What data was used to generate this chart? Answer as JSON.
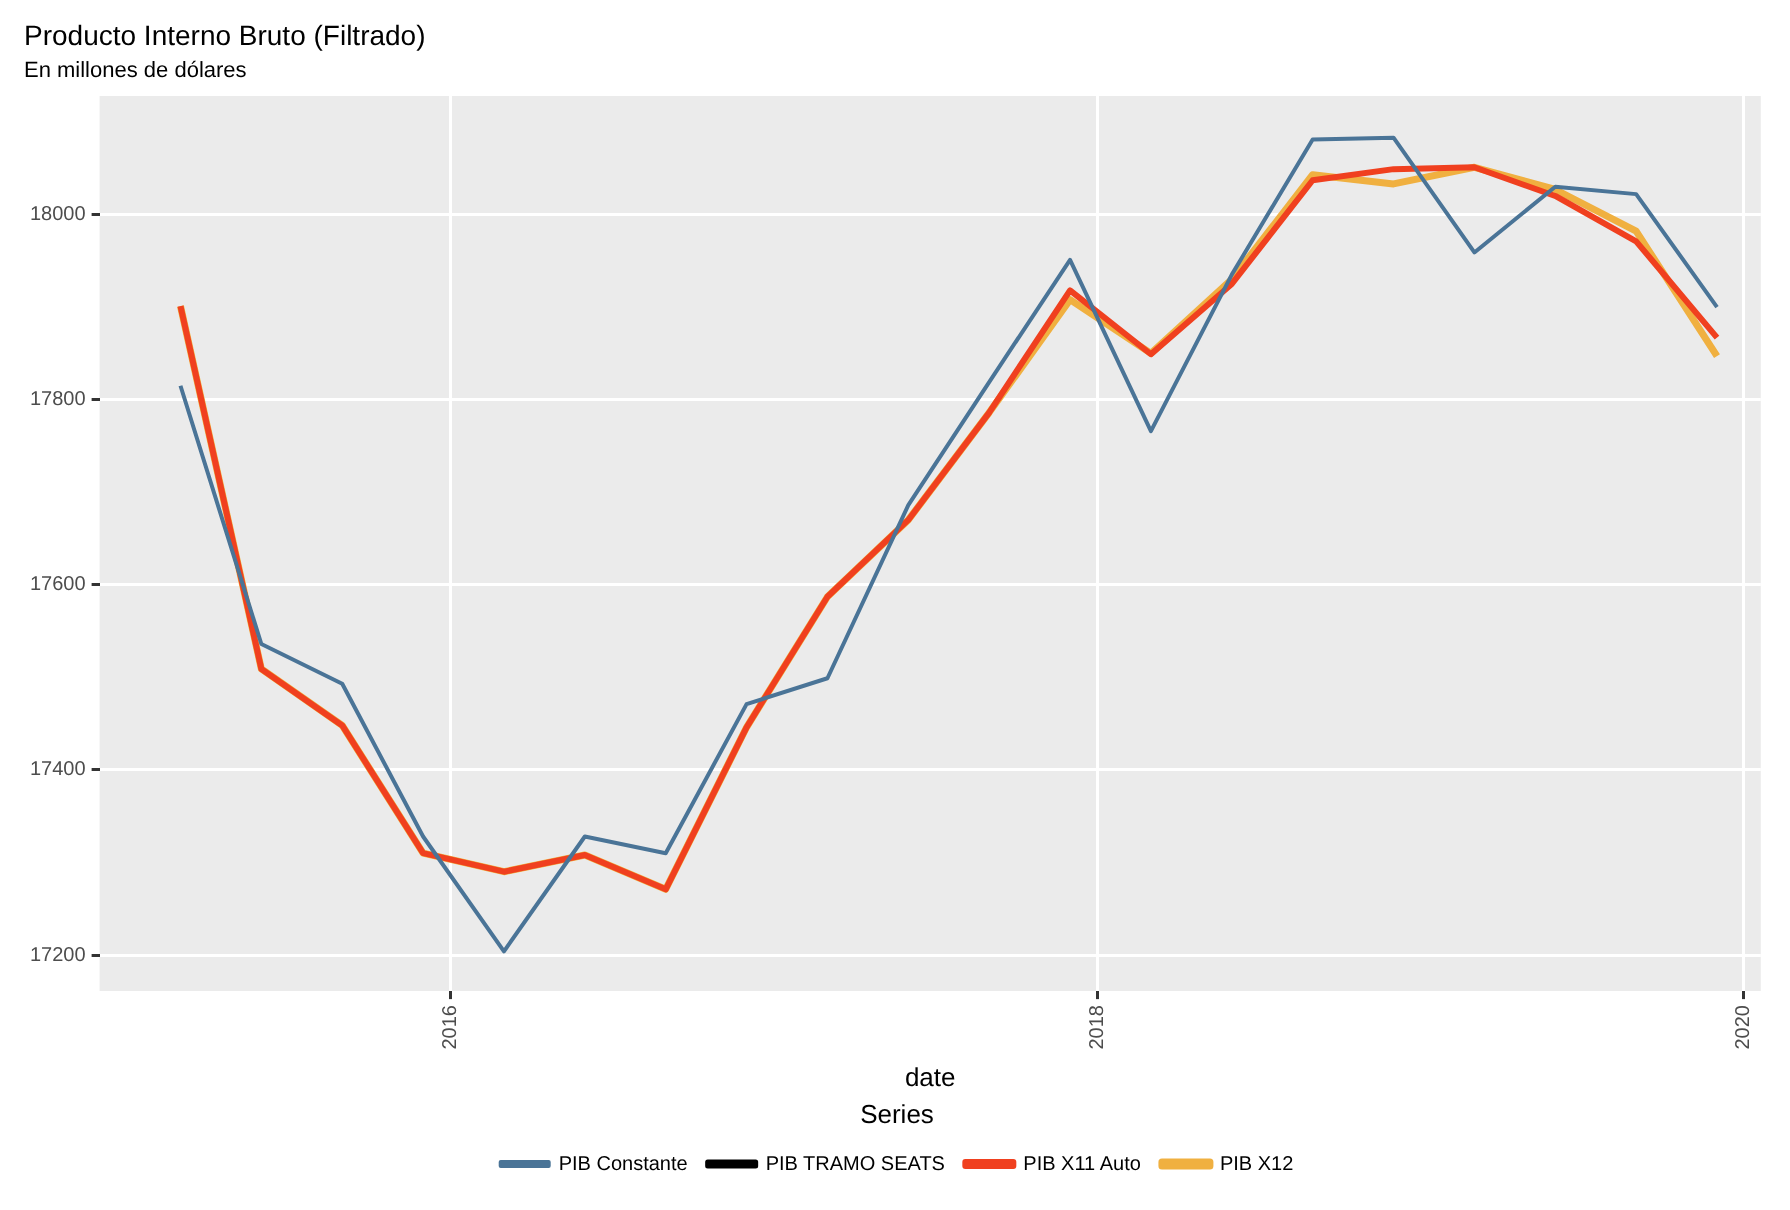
{
  "chart_data": {
    "type": "line",
    "title": "Producto Interno Bruto (Filtrado)",
    "subtitle": "En millones de dólares",
    "xlabel": "date",
    "legend_title": "Series",
    "x": [
      "2015-03-01",
      "2015-06-01",
      "2015-09-01",
      "2015-12-01",
      "2016-03-01",
      "2016-06-01",
      "2016-09-01",
      "2016-12-01",
      "2017-03-01",
      "2017-06-01",
      "2017-09-01",
      "2017-12-01",
      "2018-03-01",
      "2018-06-01",
      "2018-09-01",
      "2018-12-01",
      "2019-03-01",
      "2019-06-01",
      "2019-09-01",
      "2019-12-01"
    ],
    "series": [
      {
        "name": "PIB Constante",
        "color": "#4a7497",
        "values": [
          17815,
          17536,
          17493,
          17328,
          17204,
          17328,
          17310,
          17471,
          17499,
          17686,
          17819,
          17951,
          17766,
          17935,
          18081,
          18083,
          17959,
          18030,
          18022,
          17900
        ]
      },
      {
        "name": "PIB TRAMO SEATS",
        "color": "#000000",
        "values": [
          null,
          null,
          null,
          null,
          null,
          null,
          null,
          null,
          null,
          null,
          null,
          null,
          null,
          null,
          null,
          null,
          null,
          null,
          null,
          null
        ]
      },
      {
        "name": "PIB X11 Auto",
        "color": "#f0401f",
        "values": [
          17901,
          17509,
          17448,
          17310,
          17290,
          17308,
          17271,
          17446,
          17587,
          17670,
          17786,
          17918,
          17849,
          17925,
          18037,
          18049,
          18051,
          18020,
          17971,
          17867
        ]
      },
      {
        "name": "PIB X12",
        "color": "#f0b040",
        "values": [
          17901,
          17509,
          17448,
          17310,
          17290,
          17308,
          17271,
          17446,
          17587,
          17670,
          17786,
          17908,
          17850,
          17930,
          18043,
          18033,
          18051,
          18027,
          17982,
          17847
        ]
      }
    ],
    "xlim": [
      "2014-12-01",
      "2020-01-20"
    ],
    "xticks": [
      "2016",
      "2018",
      "2020"
    ],
    "ylim": [
      17161,
      18128
    ],
    "yticks": [
      17200,
      17400,
      17600,
      17800,
      18000
    ],
    "grid": true,
    "legend": "bottom",
    "marker": "none",
    "line_style": "solid"
  }
}
